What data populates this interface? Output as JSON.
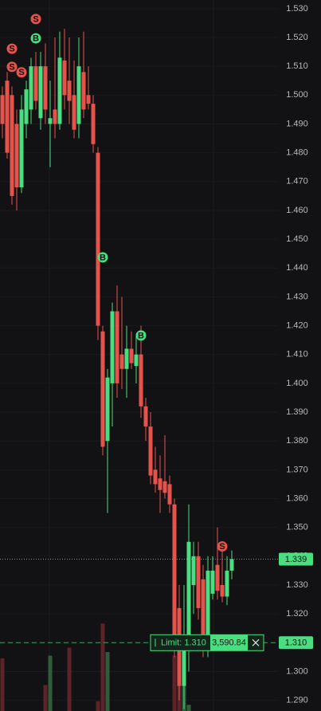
{
  "chart_data": {
    "type": "candlestick",
    "up_color": "#4ade80",
    "down_color": "#e5534b",
    "volume_up_color": "#2f5d3a",
    "volume_down_color": "#5c2428",
    "grid": true,
    "ylim": [
      1.2863,
      1.533
    ],
    "vlim": [
      0,
      100
    ],
    "yticks": [
      {
        "value": 1.53,
        "label": "1.530"
      },
      {
        "value": 1.52,
        "label": "1.520"
      },
      {
        "value": 1.51,
        "label": "1.510"
      },
      {
        "value": 1.5,
        "label": "1.500"
      },
      {
        "value": 1.49,
        "label": "1.490"
      },
      {
        "value": 1.48,
        "label": "1.480"
      },
      {
        "value": 1.47,
        "label": "1.470"
      },
      {
        "value": 1.46,
        "label": "1.460"
      },
      {
        "value": 1.45,
        "label": "1.450"
      },
      {
        "value": 1.44,
        "label": "1.440"
      },
      {
        "value": 1.43,
        "label": "1.430"
      },
      {
        "value": 1.42,
        "label": "1.420"
      },
      {
        "value": 1.41,
        "label": "1.410"
      },
      {
        "value": 1.4,
        "label": "1.400"
      },
      {
        "value": 1.39,
        "label": "1.390"
      },
      {
        "value": 1.38,
        "label": "1.380"
      },
      {
        "value": 1.37,
        "label": "1.370"
      },
      {
        "value": 1.36,
        "label": "1.360"
      },
      {
        "value": 1.35,
        "label": "1.350"
      },
      {
        "value": 1.34,
        "label": "1.340"
      },
      {
        "value": 1.33,
        "label": "1.330"
      },
      {
        "value": 1.32,
        "label": "1.320"
      },
      {
        "value": 1.31,
        "label": "1.310"
      },
      {
        "value": 1.3,
        "label": "1.300"
      },
      {
        "value": 1.29,
        "label": "1.290"
      }
    ],
    "open": [
      1.5,
      1.505,
      1.5,
      1.49,
      1.468,
      1.49,
      1.495,
      1.51,
      1.492,
      1.51,
      1.49,
      1.495,
      1.49,
      1.512,
      1.505,
      1.5,
      1.49,
      1.508,
      1.5,
      1.497,
      1.48,
      1.418,
      1.38,
      1.4,
      1.425,
      1.41,
      1.405,
      1.412,
      1.406,
      1.41,
      1.392,
      1.385,
      1.37,
      1.367,
      1.366,
      1.365,
      1.358,
      1.322,
      1.295,
      1.31,
      1.33,
      1.34,
      1.332,
      1.31,
      1.327,
      1.337,
      1.33,
      1.326,
      1.335
    ],
    "high": [
      1.503,
      1.508,
      1.503,
      1.495,
      1.5,
      1.505,
      1.513,
      1.515,
      1.515,
      1.518,
      1.505,
      1.52,
      1.522,
      1.523,
      1.52,
      1.512,
      1.52,
      1.522,
      1.51,
      1.5,
      1.482,
      1.42,
      1.405,
      1.428,
      1.434,
      1.43,
      1.42,
      1.418,
      1.417,
      1.42,
      1.395,
      1.39,
      1.378,
      1.375,
      1.382,
      1.368,
      1.36,
      1.33,
      1.33,
      1.358,
      1.345,
      1.345,
      1.337,
      1.34,
      1.34,
      1.35,
      1.345,
      1.34,
      1.342
    ],
    "low": [
      1.485,
      1.478,
      1.462,
      1.46,
      1.466,
      1.485,
      1.49,
      1.495,
      1.488,
      1.49,
      1.475,
      1.485,
      1.488,
      1.495,
      1.49,
      1.485,
      1.485,
      1.492,
      1.495,
      1.48,
      1.415,
      1.375,
      1.355,
      1.385,
      1.395,
      1.398,
      1.395,
      1.405,
      1.4,
      1.388,
      1.38,
      1.365,
      1.362,
      1.355,
      1.36,
      1.355,
      1.305,
      1.29,
      1.287,
      1.3,
      1.32,
      1.318,
      1.305,
      1.305,
      1.325,
      1.325,
      1.324,
      1.323,
      1.332
    ],
    "close": [
      1.49,
      1.48,
      1.465,
      1.468,
      1.495,
      1.502,
      1.51,
      1.498,
      1.51,
      1.495,
      1.492,
      1.49,
      1.513,
      1.5,
      1.498,
      1.488,
      1.51,
      1.495,
      1.497,
      1.483,
      1.42,
      1.378,
      1.402,
      1.425,
      1.4,
      1.405,
      1.412,
      1.407,
      1.41,
      1.392,
      1.385,
      1.368,
      1.365,
      1.363,
      1.362,
      1.358,
      1.312,
      1.295,
      1.31,
      1.345,
      1.34,
      1.322,
      1.31,
      1.335,
      1.335,
      1.328,
      1.326,
      1.335,
      1.339
    ],
    "volume": [
      59,
      null,
      null,
      null,
      null,
      null,
      null,
      null,
      null,
      29,
      62,
      null,
      null,
      null,
      71,
      null,
      null,
      null,
      null,
      null,
      11,
      98,
      66,
      null,
      null,
      null,
      null,
      null,
      null,
      null,
      null,
      null,
      null,
      null,
      null,
      null,
      62,
      75,
      69,
      7,
      null,
      null,
      null,
      null,
      null,
      null,
      null,
      null,
      null
    ],
    "markers": [
      {
        "label": "S",
        "index": 7,
        "price": 1.5264,
        "color": "#e5534b"
      },
      {
        "label": "B",
        "index": 7,
        "price": 1.5197,
        "color": "#4ade80"
      },
      {
        "label": "S",
        "index": 2,
        "price": 1.5161,
        "color": "#e5534b"
      },
      {
        "label": "S",
        "index": 2,
        "price": 1.5098,
        "color": "#e5534b"
      },
      {
        "label": "S",
        "index": 4,
        "price": 1.5079,
        "color": "#e5534b"
      },
      {
        "label": "B",
        "index": 21,
        "price": 1.4437,
        "color": "#4ade80"
      },
      {
        "label": "B",
        "index": 29,
        "price": 1.4166,
        "color": "#4ade80"
      },
      {
        "label": "S",
        "index": 46,
        "price": 1.3434,
        "color": "#e5534b"
      }
    ],
    "last_price": {
      "value": 1.339,
      "label": "1.339"
    },
    "limit_order": {
      "price": {
        "value": 1.31,
        "label": "1.310"
      },
      "label": "Limit: 1.310",
      "amount": "3,590.84"
    }
  }
}
